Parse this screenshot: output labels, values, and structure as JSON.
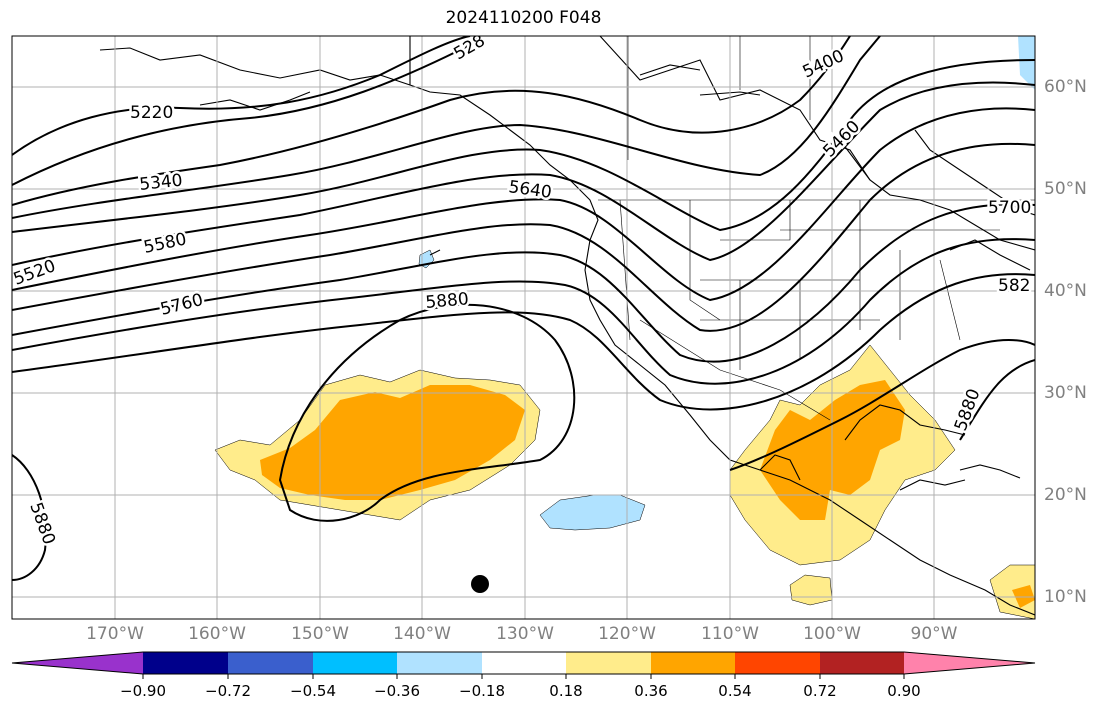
{
  "title": "2024110200 F048",
  "colors": {
    "ocean_bg": "#ffffff",
    "land_line": "#000000",
    "grid": "#b0b0b0",
    "label_gray": "#808080"
  },
  "lon_labels": [
    "170°W",
    "160°W",
    "150°W",
    "140°W",
    "130°W",
    "120°W",
    "110°W",
    "100°W",
    "90°W"
  ],
  "lat_labels": [
    "60°N",
    "50°N",
    "40°N",
    "30°N",
    "20°N",
    "10°N"
  ],
  "contour_labels": [
    "5220",
    "5340",
    "5520",
    "5580",
    "5760",
    "5880",
    "5640",
    "5400",
    "5460",
    "5700",
    "582",
    "5880",
    "5880",
    "528"
  ],
  "colorbar": {
    "ticks": [
      "−0.90",
      "−0.72",
      "−0.54",
      "−0.36",
      "−0.18",
      "0.18",
      "0.36",
      "0.54",
      "0.72",
      "0.90"
    ],
    "colors": [
      "#9932cc",
      "#00008b",
      "#3a5fcd",
      "#00bfff",
      "#b0e2ff",
      "#ffffff",
      "#ffec8b",
      "#ffa500",
      "#ff4500",
      "#b22222",
      "#ff82ab"
    ]
  }
}
